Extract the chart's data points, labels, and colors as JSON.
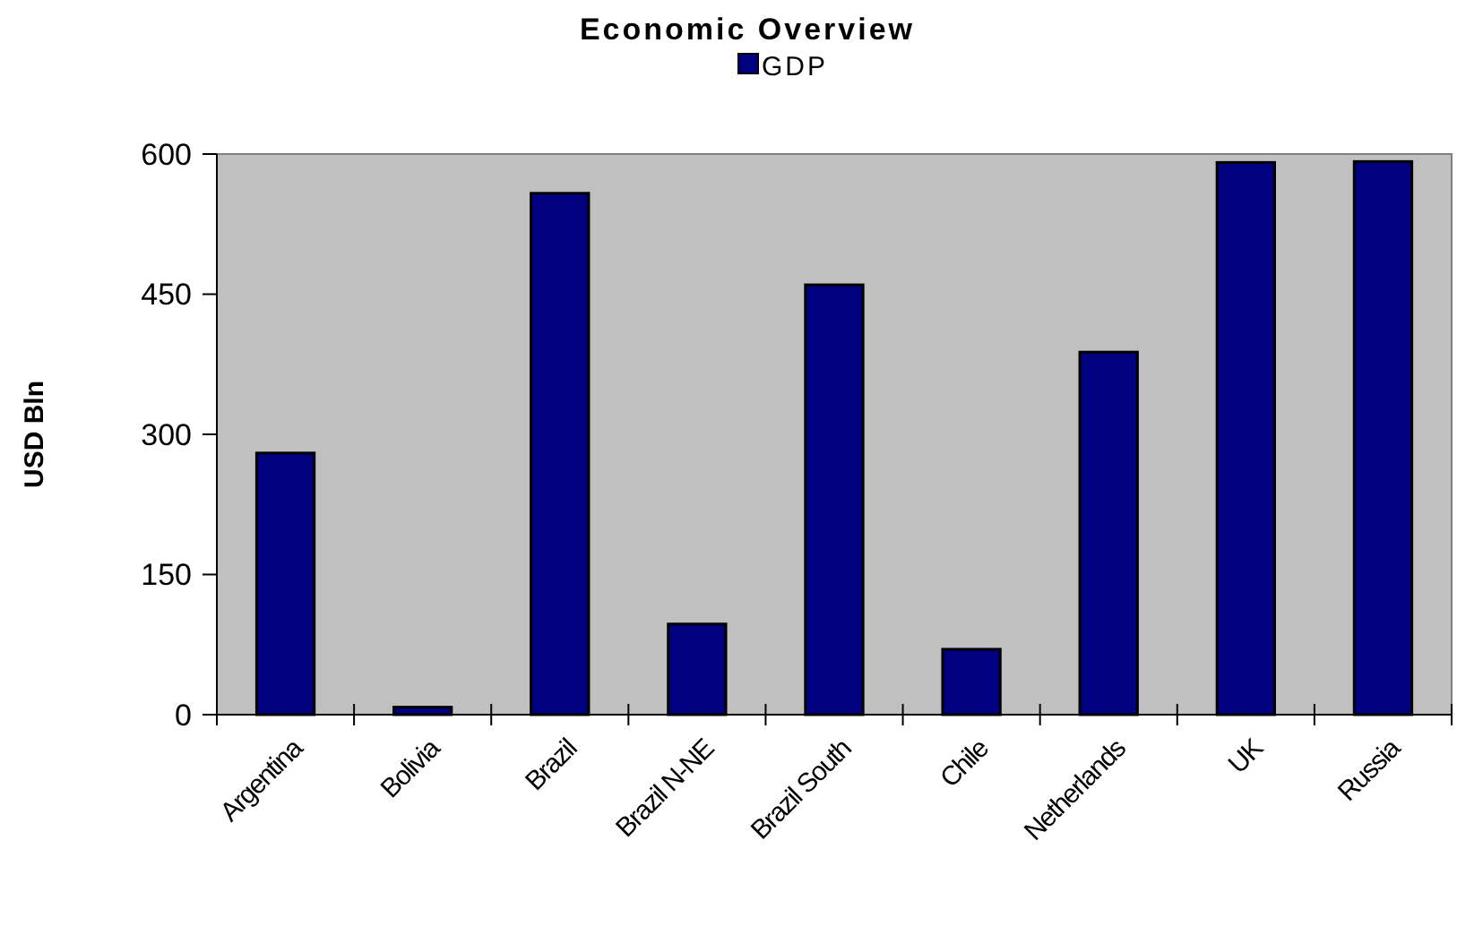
{
  "chart_data": {
    "type": "bar",
    "title": "Economic Overview",
    "ylabel": "USD Bln",
    "categories": [
      "Argentina",
      "Bolivia",
      "Brazil",
      "Brazil N-NE",
      "Brazil South",
      "Chile",
      "Netherlands",
      "UK",
      "Russia"
    ],
    "series": [
      {
        "name": "GDP",
        "color": "#000080",
        "values": [
          280,
          8,
          558,
          97,
          460,
          70,
          388,
          591,
          592
        ]
      }
    ],
    "ylim": [
      0,
      600
    ],
    "yticks": [
      0,
      150,
      300,
      450,
      600
    ],
    "grid": false,
    "legend": "top"
  }
}
